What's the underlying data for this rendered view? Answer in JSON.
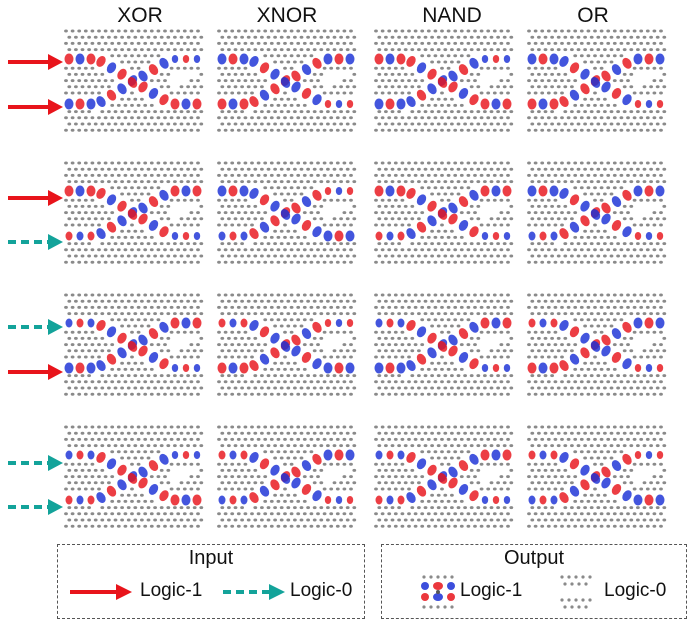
{
  "columns": [
    "XOR",
    "XNOR",
    "NAND",
    "OR"
  ],
  "rows": [
    {
      "inputs": [
        "logic-1",
        "logic-1"
      ],
      "outputs": [
        "0",
        "1",
        "0",
        "1"
      ]
    },
    {
      "inputs": [
        "logic-1",
        "logic-0"
      ],
      "outputs": [
        "1",
        "0",
        "1",
        "1"
      ]
    },
    {
      "inputs": [
        "logic-0",
        "logic-1"
      ],
      "outputs": [
        "1",
        "0",
        "1",
        "1"
      ]
    },
    {
      "inputs": [
        "logic-0",
        "logic-0"
      ],
      "outputs": [
        "0",
        "1",
        "1",
        "0"
      ]
    }
  ],
  "legend": {
    "input": {
      "title": "Input",
      "logic1_label": "Logic-1",
      "logic0_label": "Logic-0"
    },
    "output": {
      "title": "Output",
      "logic1_label": "Logic-1",
      "logic0_label": "Logic-0"
    }
  },
  "colors": {
    "logic1_arrow": "#e8141b",
    "logic0_arrow": "#13a39a",
    "field_red": "#e8141b",
    "field_blue": "#1a2fd6",
    "hole": "#8a8a8a"
  }
}
